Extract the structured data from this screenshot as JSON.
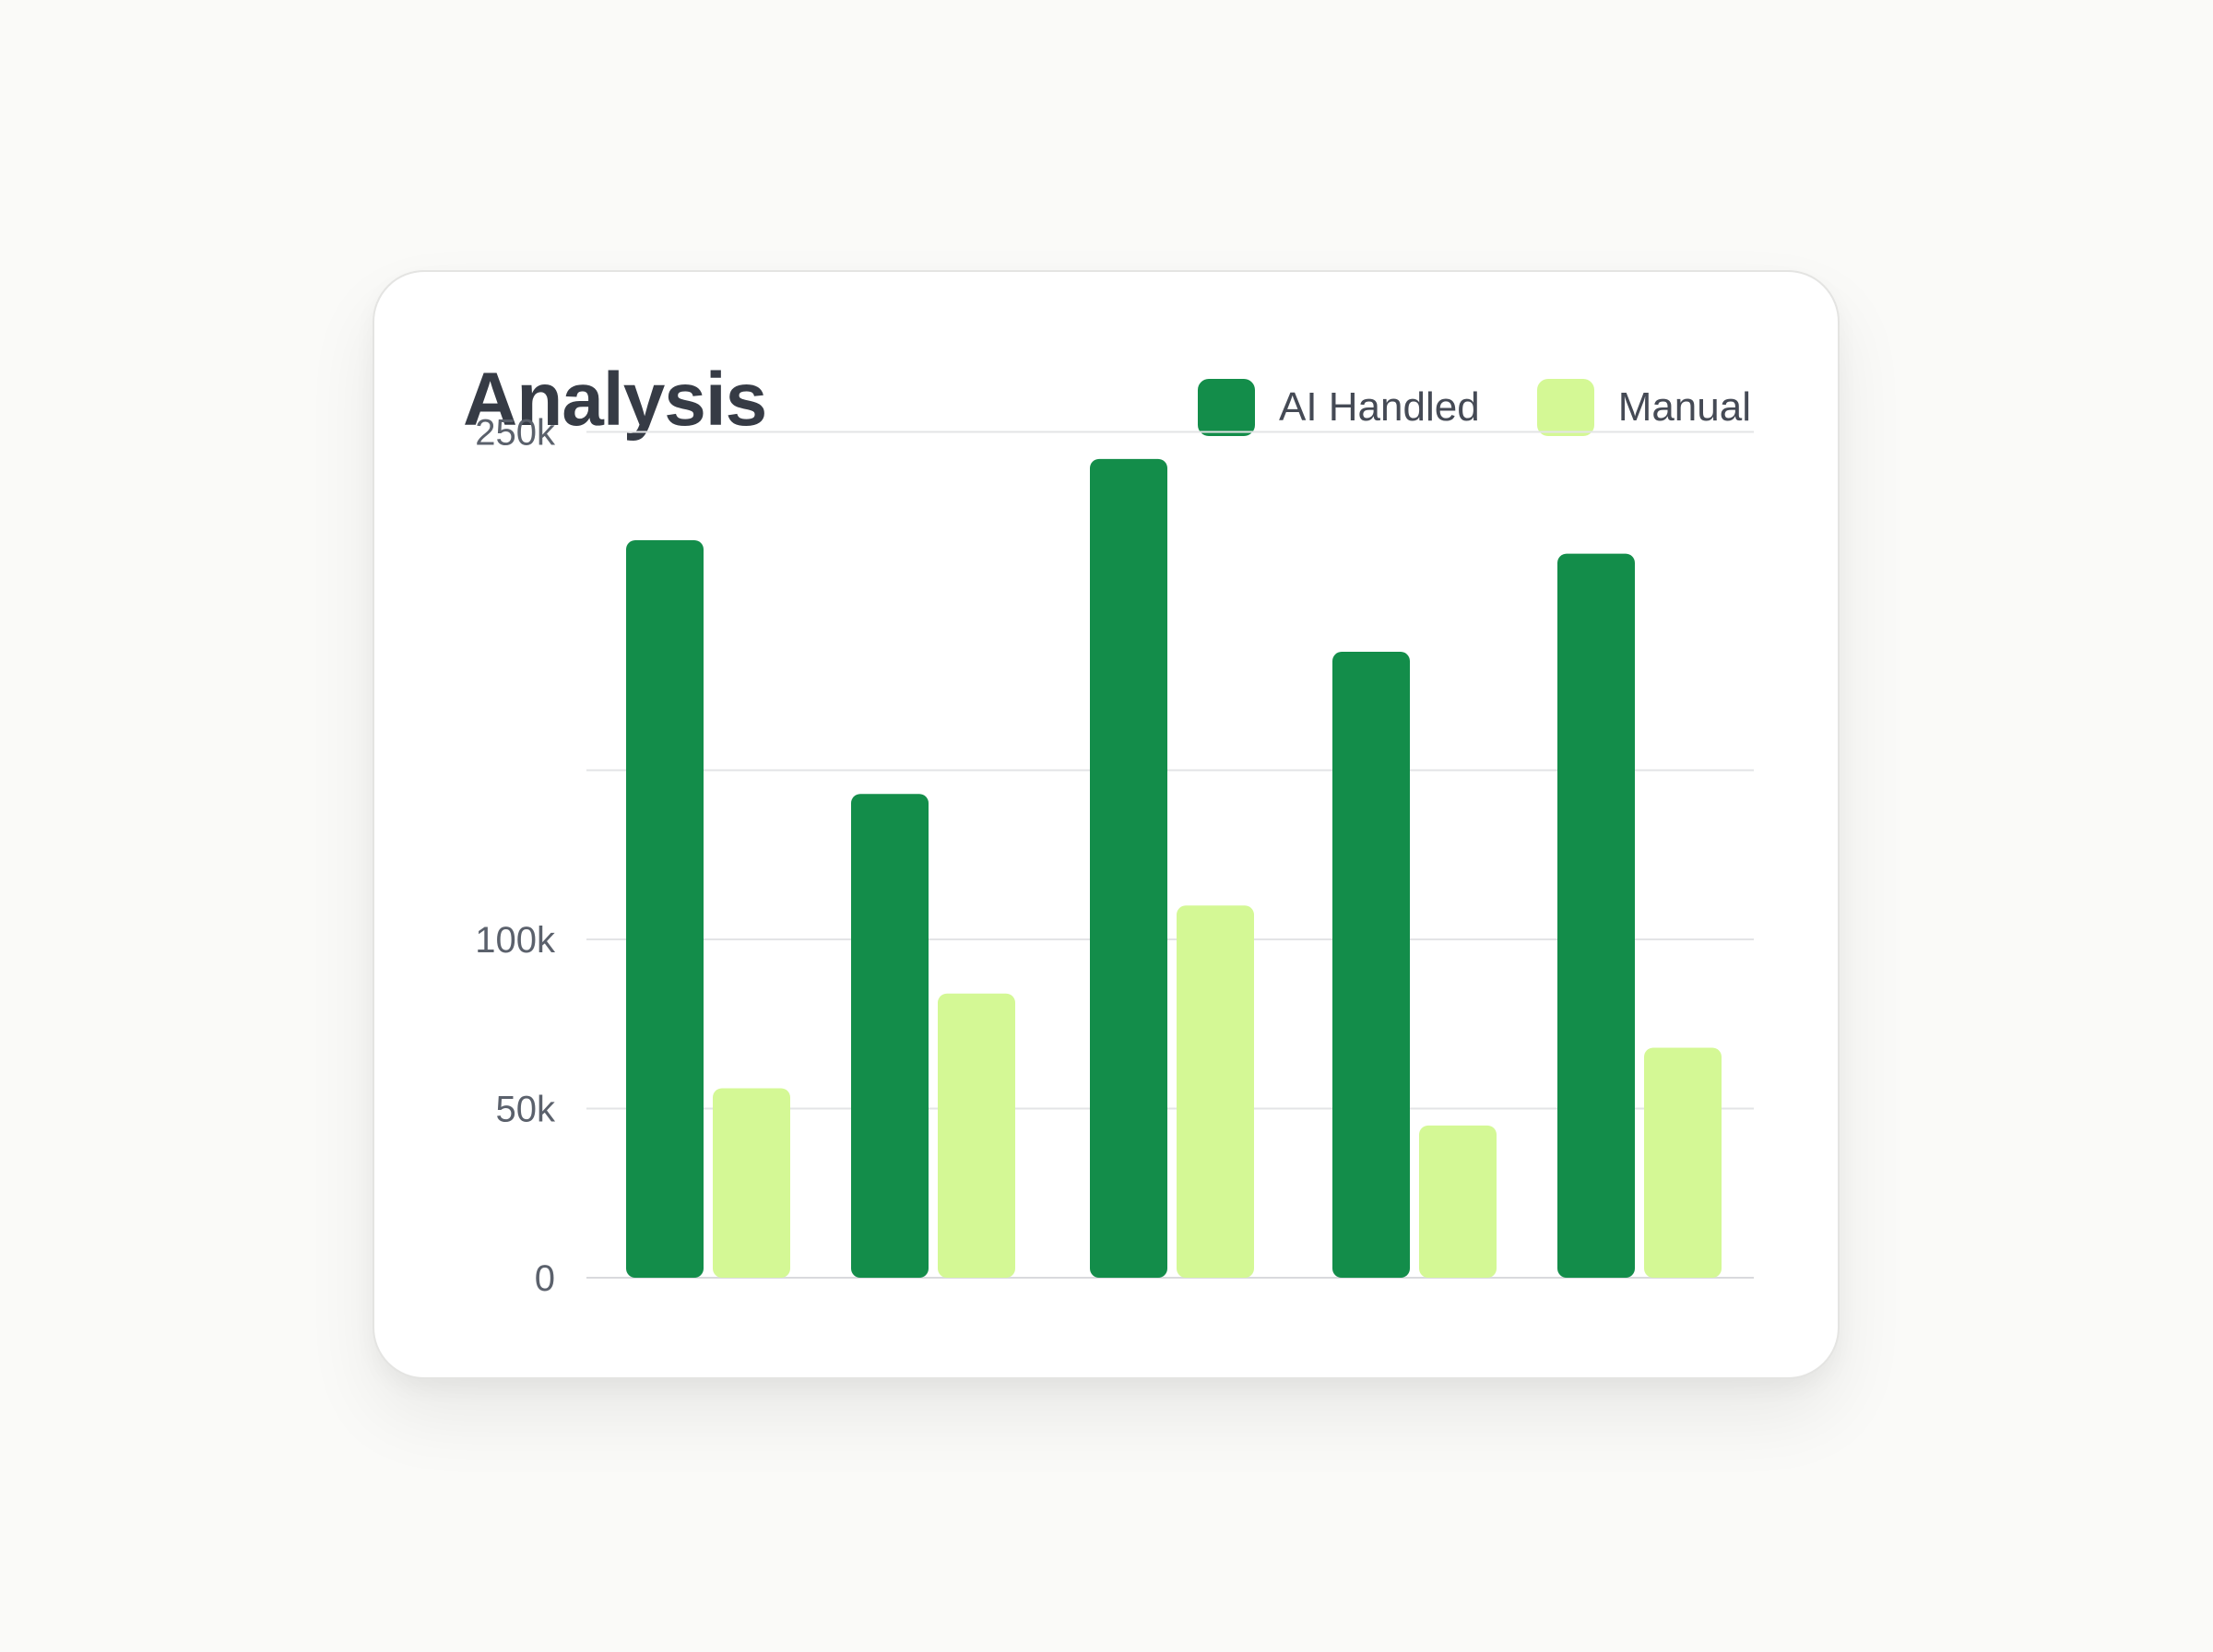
{
  "chart_data": {
    "type": "bar",
    "title": "Analysis",
    "categories": [
      "",
      "",
      "",
      "",
      ""
    ],
    "series": [
      {
        "name": "AI Handled",
        "color": "#138d4a",
        "values": [
          218000,
          143000,
          242000,
          185000,
          214000
        ]
      },
      {
        "name": "Manual",
        "color": "#d4f895",
        "values": [
          56000,
          84000,
          110000,
          45000,
          68000
        ]
      }
    ],
    "y_ticks": [
      {
        "value": 0,
        "label": "0"
      },
      {
        "value": 50000,
        "label": "50k"
      },
      {
        "value": 100000,
        "label": "100k"
      },
      {
        "value": 150000,
        "label": ""
      },
      {
        "value": 250000,
        "label": "250k"
      }
    ],
    "ylim": [
      0,
      250000
    ],
    "xlabel": "",
    "ylabel": "",
    "grid": true,
    "legend_position": "top-right"
  }
}
